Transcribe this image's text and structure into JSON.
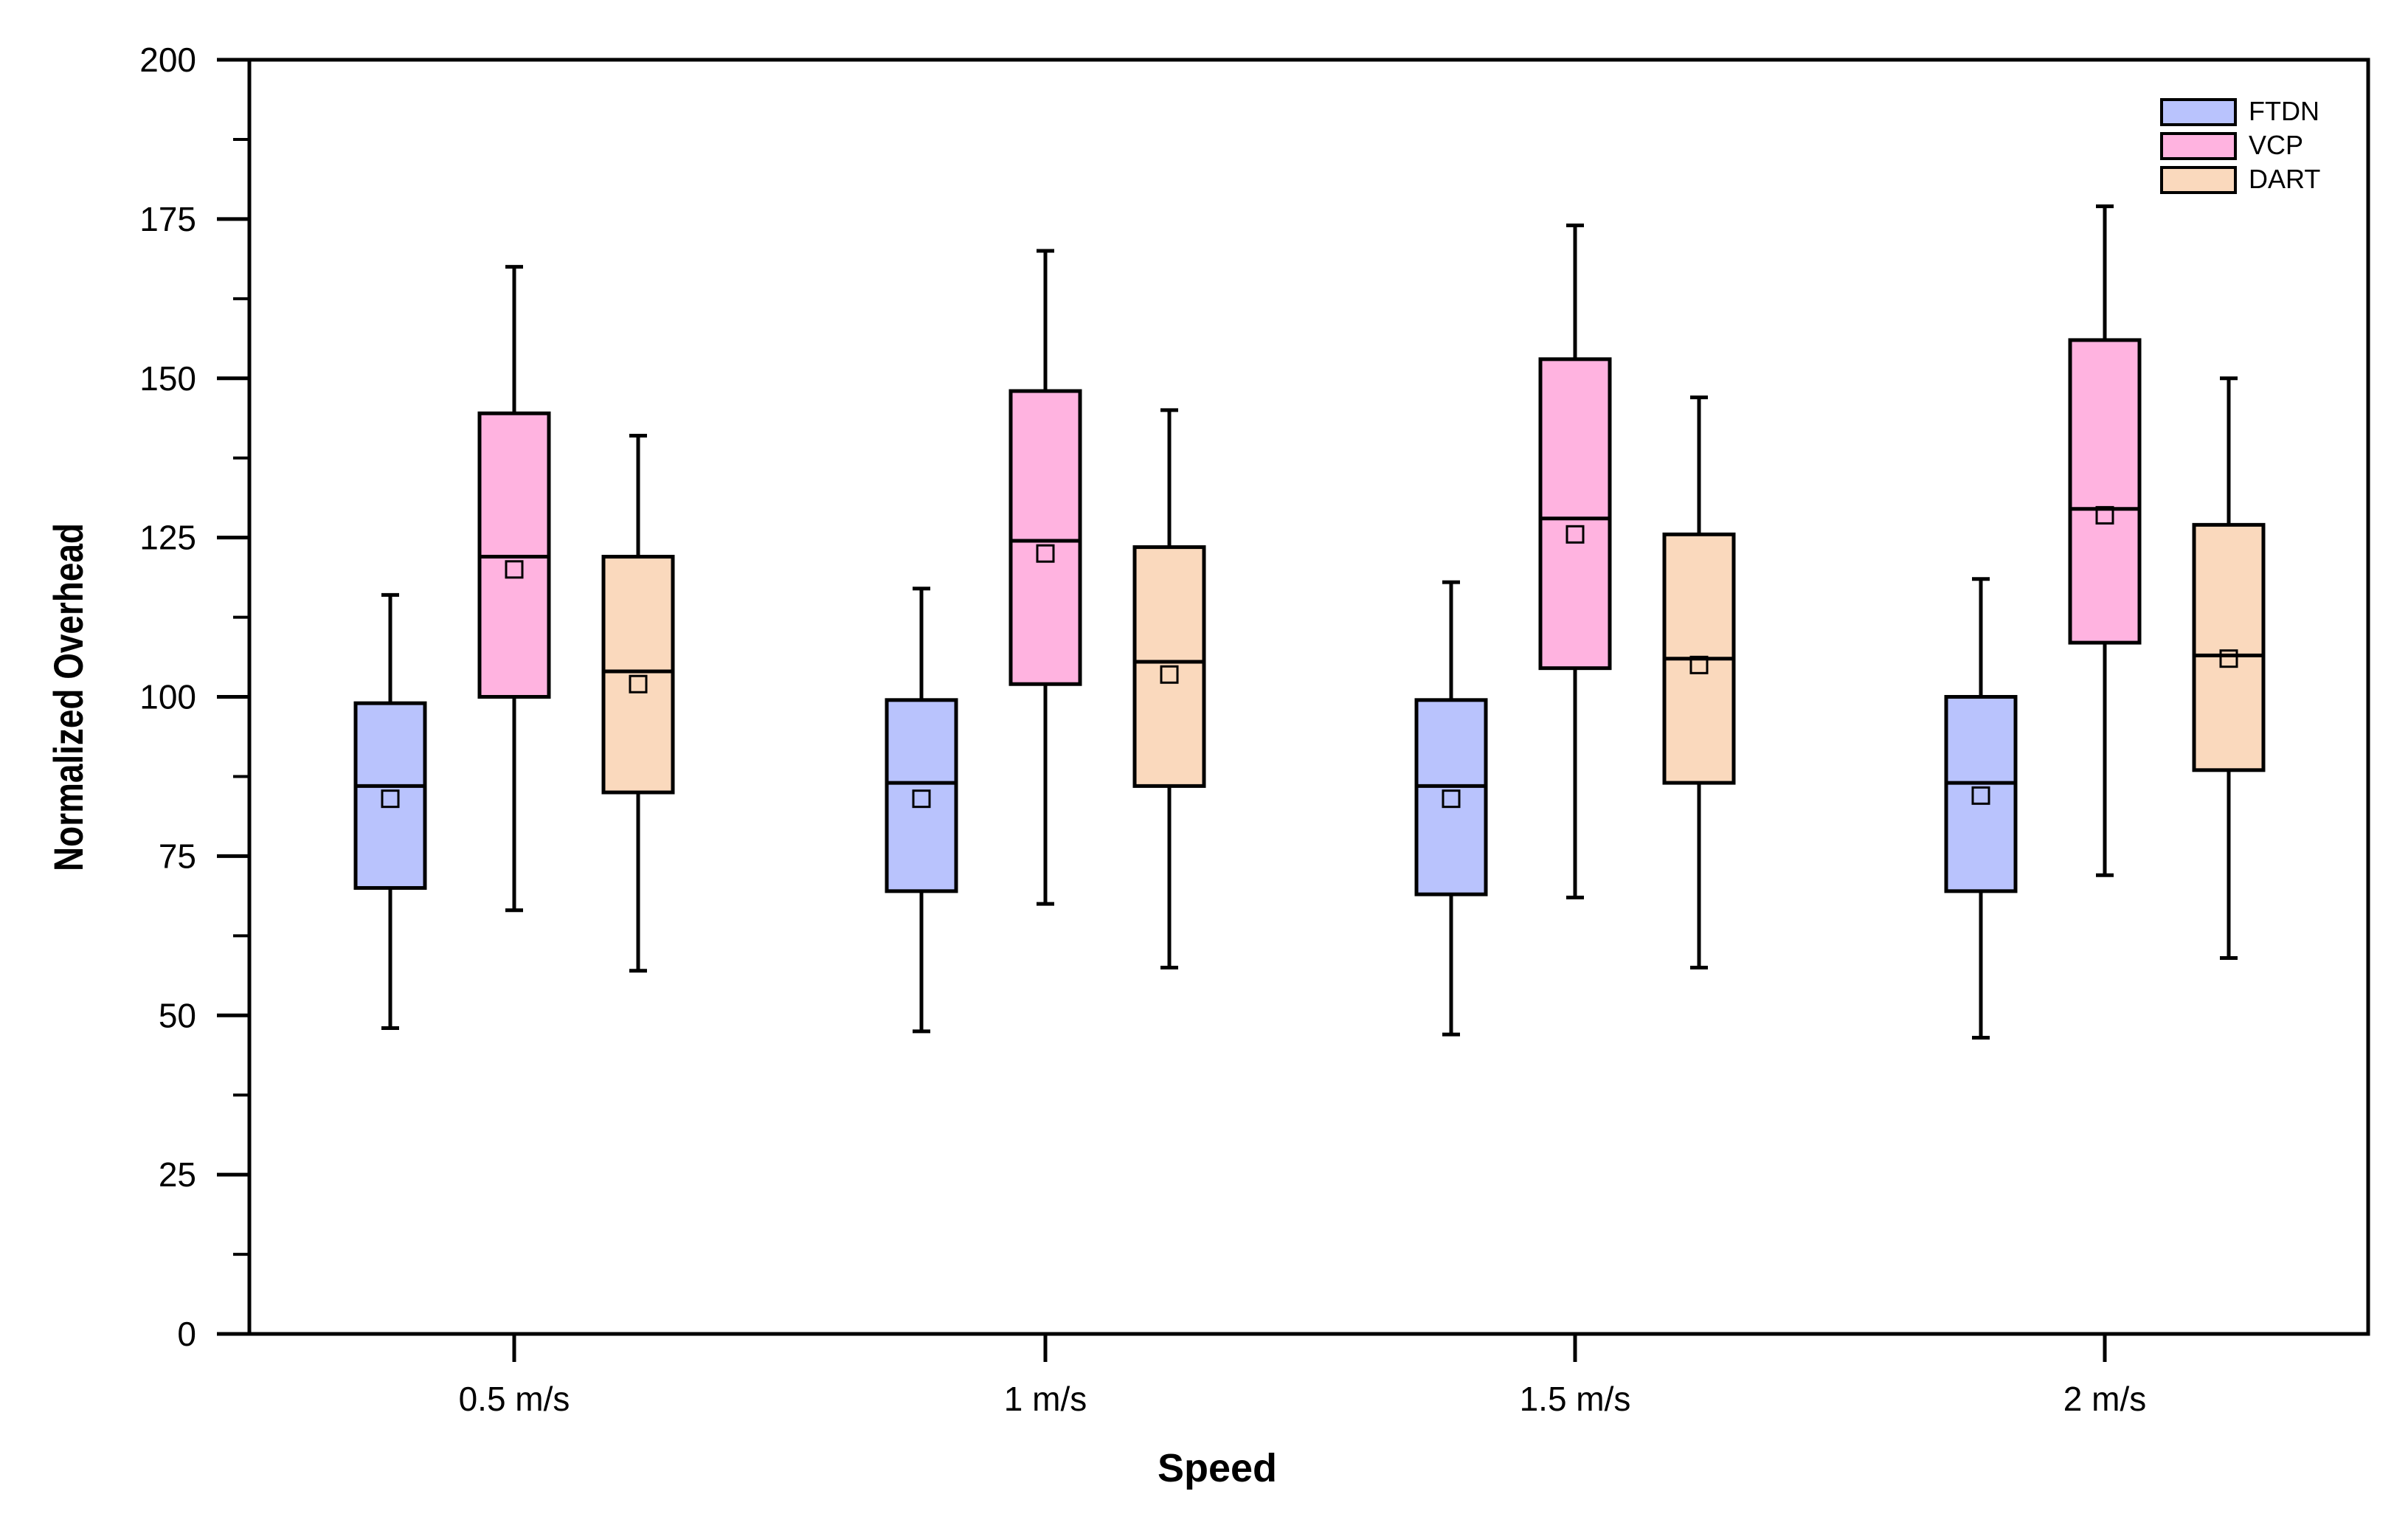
{
  "chart_data": {
    "type": "boxplot",
    "title": "",
    "xlabel": "Speed",
    "ylabel": "Normalized Overhead",
    "ylim": [
      0,
      200
    ],
    "yticks": [
      0,
      25,
      50,
      75,
      100,
      125,
      150,
      175,
      200
    ],
    "grid": false,
    "legend_position": "top-right",
    "categories": [
      "0.5 m/s",
      "1 m/s",
      "1.5 m/s",
      "2 m/s"
    ],
    "series": [
      {
        "name": "FTDN",
        "color": "#b9c3fd",
        "boxes": [
          {
            "whisker_low": 48,
            "q1": 70,
            "median": 86,
            "q3": 99,
            "whisker_high": 116,
            "mean": 84
          },
          {
            "whisker_low": 47.5,
            "q1": 69.5,
            "median": 86.5,
            "q3": 99.5,
            "whisker_high": 117,
            "mean": 84
          },
          {
            "whisker_low": 47,
            "q1": 69,
            "median": 86,
            "q3": 99.5,
            "whisker_high": 118,
            "mean": 84
          },
          {
            "whisker_low": 46.5,
            "q1": 69.5,
            "median": 86.5,
            "q3": 100,
            "whisker_high": 118.5,
            "mean": 84.5
          }
        ]
      },
      {
        "name": "VCP",
        "color": "#ffb3e0",
        "boxes": [
          {
            "whisker_low": 66.5,
            "q1": 100,
            "median": 122,
            "q3": 144.5,
            "whisker_high": 167.5,
            "mean": 120
          },
          {
            "whisker_low": 67.5,
            "q1": 102,
            "median": 124.5,
            "q3": 148,
            "whisker_high": 170,
            "mean": 122.5
          },
          {
            "whisker_low": 68.5,
            "q1": 104.5,
            "median": 128,
            "q3": 153,
            "whisker_high": 174,
            "mean": 125.5
          },
          {
            "whisker_low": 72,
            "q1": 108.5,
            "median": 129.5,
            "q3": 156,
            "whisker_high": 177,
            "mean": 128.5
          }
        ]
      },
      {
        "name": "DART",
        "color": "#fad9bd",
        "boxes": [
          {
            "whisker_low": 57,
            "q1": 85,
            "median": 104,
            "q3": 122,
            "whisker_high": 141,
            "mean": 102
          },
          {
            "whisker_low": 57.5,
            "q1": 86,
            "median": 105.5,
            "q3": 123.5,
            "whisker_high": 145,
            "mean": 103.5
          },
          {
            "whisker_low": 57.5,
            "q1": 86.5,
            "median": 106,
            "q3": 125.5,
            "whisker_high": 147,
            "mean": 105
          },
          {
            "whisker_low": 59,
            "q1": 88.5,
            "median": 106.5,
            "q3": 127,
            "whisker_high": 150,
            "mean": 106
          }
        ]
      }
    ]
  }
}
